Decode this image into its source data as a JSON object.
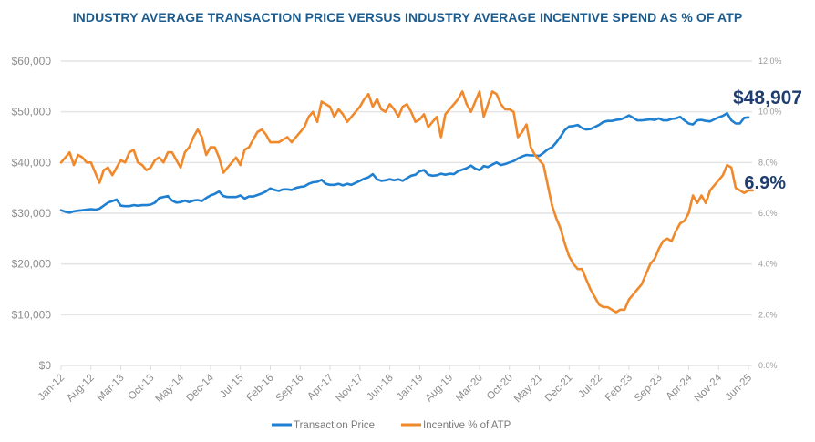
{
  "chart_data": {
    "type": "line",
    "title": "INDUSTRY AVERAGE TRANSACTION PRICE VERSUS INDUSTRY AVERAGE INCENTIVE SPEND AS % OF ATP",
    "xlabel": "",
    "ylabel_left": "",
    "ylabel_right": "",
    "x_start": "Jan-12",
    "x_end": "Jun-25",
    "x_ticks": [
      "Jan-12",
      "Aug-12",
      "Mar-13",
      "Oct-13",
      "May-14",
      "Dec-14",
      "Jul-15",
      "Feb-16",
      "Sep-16",
      "Apr-17",
      "Nov-17",
      "Jun-18",
      "Jan-19",
      "Aug-19",
      "Mar-20",
      "Oct-20",
      "May-21",
      "Dec-21",
      "Jul-22",
      "Feb-23",
      "Sep-23",
      "Apr-24",
      "Nov-24",
      "Jun-25"
    ],
    "y_left": {
      "ticks": [
        "$0",
        "$10,000",
        "$20,000",
        "$30,000",
        "$40,000",
        "$50,000",
        "$60,000"
      ],
      "range": [
        0,
        60000
      ]
    },
    "y_right": {
      "ticks": [
        "0.0%",
        "2.0%",
        "4.0%",
        "6.0%",
        "8.0%",
        "10.0%",
        "12.0%"
      ],
      "range": [
        0,
        12
      ]
    },
    "grid": true,
    "legend_position": "bottom",
    "series": [
      {
        "name": "Transaction Price",
        "axis": "left",
        "color": "#1f7fd0",
        "values": [
          30600,
          30300,
          30100,
          30400,
          30500,
          30600,
          30700,
          30800,
          30700,
          30900,
          31500,
          32100,
          32400,
          32700,
          31500,
          31400,
          31400,
          31600,
          31500,
          31600,
          31600,
          31700,
          32100,
          33000,
          33200,
          33400,
          32500,
          32100,
          32200,
          32500,
          32200,
          32500,
          32600,
          32400,
          33000,
          33500,
          33800,
          34300,
          33400,
          33200,
          33200,
          33200,
          33500,
          32900,
          33300,
          33300,
          33600,
          33900,
          34300,
          34900,
          34600,
          34400,
          34700,
          34700,
          34600,
          35000,
          35200,
          35300,
          35800,
          36100,
          36200,
          36600,
          35800,
          35600,
          35600,
          35800,
          35500,
          35800,
          35600,
          36000,
          36400,
          36800,
          37100,
          37700,
          36700,
          36400,
          36500,
          36700,
          36500,
          36700,
          36400,
          36900,
          37400,
          37600,
          38300,
          38500,
          37600,
          37400,
          37500,
          37800,
          37600,
          37800,
          37700,
          38300,
          38600,
          38900,
          39400,
          38800,
          38500,
          39300,
          39100,
          39600,
          40000,
          39500,
          39700,
          40000,
          40300,
          40800,
          41200,
          41500,
          41400,
          41400,
          41300,
          41900,
          42600,
          43000,
          44000,
          45100,
          46400,
          47100,
          47200,
          47400,
          46800,
          46500,
          46600,
          47000,
          47400,
          48000,
          48200,
          48200,
          48400,
          48500,
          48800,
          49300,
          48800,
          48300,
          48300,
          48400,
          48500,
          48400,
          48700,
          48300,
          48300,
          48600,
          48700,
          49000,
          48300,
          47700,
          47500,
          48300,
          48400,
          48200,
          48100,
          48500,
          48900,
          49200,
          49700,
          48300,
          47700,
          47700,
          48800,
          48907
        ]
      },
      {
        "name": "Incentive % of ATP",
        "axis": "right",
        "color": "#f0892b",
        "values": [
          8.0,
          8.2,
          8.4,
          7.9,
          8.3,
          8.2,
          8.0,
          8.0,
          7.6,
          7.2,
          7.7,
          7.8,
          7.5,
          7.8,
          8.1,
          8.0,
          8.4,
          8.5,
          8.0,
          7.9,
          7.7,
          7.8,
          8.1,
          8.2,
          8.0,
          8.4,
          8.4,
          8.1,
          7.8,
          8.4,
          8.6,
          9.0,
          9.3,
          9.0,
          8.3,
          8.6,
          8.6,
          8.2,
          7.6,
          7.8,
          8.0,
          8.2,
          7.9,
          8.5,
          8.6,
          8.9,
          9.2,
          9.3,
          9.1,
          8.8,
          8.8,
          8.8,
          8.9,
          9.0,
          8.8,
          9.0,
          9.2,
          9.4,
          9.8,
          10.0,
          9.6,
          10.4,
          10.3,
          10.2,
          9.8,
          10.1,
          9.9,
          9.6,
          9.8,
          10.0,
          10.2,
          10.5,
          10.7,
          10.2,
          10.5,
          10.1,
          10.0,
          10.3,
          10.1,
          9.8,
          10.2,
          10.3,
          10.0,
          9.6,
          9.7,
          9.9,
          9.4,
          9.6,
          9.8,
          9.0,
          9.9,
          10.1,
          10.3,
          10.5,
          10.8,
          10.3,
          10.0,
          10.4,
          10.8,
          9.8,
          10.3,
          10.8,
          10.7,
          10.3,
          10.1,
          10.1,
          10.0,
          9.0,
          9.2,
          9.5,
          8.6,
          8.3,
          8.1,
          7.9,
          7.1,
          6.3,
          5.8,
          5.4,
          4.8,
          4.3,
          4.0,
          3.8,
          3.8,
          3.4,
          3.0,
          2.7,
          2.4,
          2.3,
          2.3,
          2.2,
          2.1,
          2.2,
          2.2,
          2.6,
          2.8,
          3.0,
          3.2,
          3.6,
          4.0,
          4.2,
          4.6,
          4.9,
          5.0,
          4.9,
          5.3,
          5.6,
          5.7,
          6.0,
          6.7,
          6.4,
          6.7,
          6.4,
          6.9,
          7.1,
          7.3,
          7.5,
          7.9,
          7.8,
          7.0,
          6.9,
          6.8,
          6.9,
          6.9
        ]
      }
    ],
    "annotations": [
      {
        "text": "$48,907",
        "series": "Transaction Price",
        "at": "end"
      },
      {
        "text": "6.9%",
        "series": "Incentive % of ATP",
        "at": "end"
      }
    ]
  }
}
